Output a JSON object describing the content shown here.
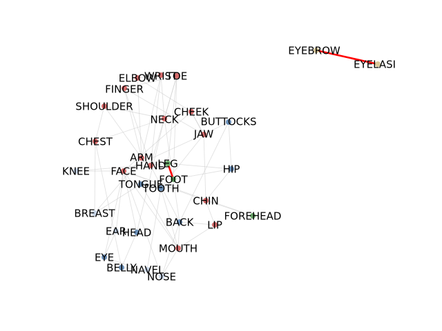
{
  "graph": {
    "colors": {
      "red_node": "#d46a6a",
      "blue_node": "#6a8fb8",
      "green_node": "#6aa86a",
      "tan_node": "#d8c89a",
      "pale_node": "#c9d6e8",
      "faint_edge": "#c8c8c8",
      "strong_edge": "#ff0000"
    },
    "nodes": [
      {
        "id": "EYEBROW",
        "label": "EYEBROW",
        "color": "tan_node"
      },
      {
        "id": "EYELASH",
        "label": "EYELASI",
        "color": "tan_node"
      },
      {
        "id": "WRIST",
        "label": "WRIST",
        "color": "red_node"
      },
      {
        "id": "TOE",
        "label": "TOE",
        "color": "red_node"
      },
      {
        "id": "ELBOW",
        "label": "ELBOW",
        "color": "red_node"
      },
      {
        "id": "FINGER",
        "label": "FINGER",
        "color": "red_node"
      },
      {
        "id": "SHOULDER",
        "label": "SHOULDER",
        "color": "red_node"
      },
      {
        "id": "CHEEK",
        "label": "CHEEK",
        "color": "red_node"
      },
      {
        "id": "NECK",
        "label": "NECK",
        "color": "red_node"
      },
      {
        "id": "BUTTOCKS",
        "label": "BUTTOCKS",
        "color": "blue_node"
      },
      {
        "id": "JAW",
        "label": "JAW",
        "color": "red_node"
      },
      {
        "id": "CHEST",
        "label": "CHEST",
        "color": "red_node"
      },
      {
        "id": "ARM",
        "label": "ARM",
        "color": "red_node"
      },
      {
        "id": "HAND",
        "label": "HAND",
        "color": "red_node"
      },
      {
        "id": "LEG",
        "label": "LEG",
        "color": "green_node"
      },
      {
        "id": "KNEE",
        "label": "KNEE",
        "color": "pale_node"
      },
      {
        "id": "FACE",
        "label": "FACE",
        "color": "red_node"
      },
      {
        "id": "HIP",
        "label": "HIP",
        "color": "blue_node"
      },
      {
        "id": "FOOT",
        "label": "FOOT",
        "color": "green_node"
      },
      {
        "id": "TONGUE",
        "label": "TONGUE",
        "color": "blue_node"
      },
      {
        "id": "TOOTH",
        "label": "TOOTH",
        "color": "blue_node"
      },
      {
        "id": "CHIN",
        "label": "CHIN",
        "color": "red_node"
      },
      {
        "id": "BREAST",
        "label": "BREAST",
        "color": "pale_node"
      },
      {
        "id": "FOREHEAD",
        "label": "FOREHEAD",
        "color": "green_node"
      },
      {
        "id": "BACK",
        "label": "BACK",
        "color": "blue_node"
      },
      {
        "id": "LIP",
        "label": "LIP",
        "color": "red_node"
      },
      {
        "id": "EAR",
        "label": "EAR",
        "color": "pale_node"
      },
      {
        "id": "HEAD",
        "label": "HEAD",
        "color": "blue_node"
      },
      {
        "id": "MOUTH",
        "label": "MOUTH",
        "color": "red_node"
      },
      {
        "id": "EYE",
        "label": "EYE",
        "color": "blue_node"
      },
      {
        "id": "BELLY",
        "label": "BELLY",
        "color": "blue_node"
      },
      {
        "id": "NAVEL",
        "label": "NAVEL",
        "color": "pale_node"
      },
      {
        "id": "NOSE",
        "label": "NOSE",
        "color": "pale_node"
      }
    ],
    "strong_edges": [
      [
        "EYEBROW",
        "EYELASH"
      ],
      [
        "LEG",
        "FOOT"
      ]
    ],
    "faint_edges": [
      [
        "ARM",
        "HAND"
      ],
      [
        "ARM",
        "ELBOW"
      ],
      [
        "ARM",
        "WRIST"
      ],
      [
        "ARM",
        "FINGER"
      ],
      [
        "ARM",
        "SHOULDER"
      ],
      [
        "HAND",
        "FINGER"
      ],
      [
        "HAND",
        "WRIST"
      ],
      [
        "HAND",
        "TOE"
      ],
      [
        "ELBOW",
        "WRIST"
      ],
      [
        "FINGER",
        "TOE"
      ],
      [
        "LEG",
        "KNEE"
      ],
      [
        "LEG",
        "TOE"
      ],
      [
        "LEG",
        "HIP"
      ],
      [
        "FOOT",
        "TOE"
      ],
      [
        "FOOT",
        "HIP"
      ],
      [
        "FACE",
        "CHEEK"
      ],
      [
        "FACE",
        "JAW"
      ],
      [
        "FACE",
        "CHIN"
      ],
      [
        "FACE",
        "MOUTH"
      ],
      [
        "FACE",
        "NOSE"
      ],
      [
        "FACE",
        "EYE"
      ],
      [
        "FACE",
        "FOREHEAD"
      ],
      [
        "FACE",
        "HEAD"
      ],
      [
        "FACE",
        "EAR"
      ],
      [
        "NECK",
        "SHOULDER"
      ],
      [
        "NECK",
        "HEAD"
      ],
      [
        "NECK",
        "CHEST"
      ],
      [
        "NECK",
        "BACK"
      ],
      [
        "CHEST",
        "BREAST"
      ],
      [
        "CHEST",
        "BELLY"
      ],
      [
        "BELLY",
        "NAVEL"
      ],
      [
        "BUTTOCKS",
        "HIP"
      ],
      [
        "BUTTOCKS",
        "BACK"
      ],
      [
        "JAW",
        "CHIN"
      ],
      [
        "JAW",
        "TOOTH"
      ],
      [
        "JAW",
        "CHEEK"
      ],
      [
        "MOUTH",
        "LIP"
      ],
      [
        "MOUTH",
        "TONGUE"
      ],
      [
        "MOUTH",
        "TOOTH"
      ],
      [
        "TONGUE",
        "TOOTH"
      ],
      [
        "LIP",
        "CHIN"
      ],
      [
        "EYE",
        "NOSE"
      ],
      [
        "EAR",
        "HEAD"
      ],
      [
        "NOSE",
        "MOUTH"
      ],
      [
        "TOE",
        "NECK"
      ],
      [
        "WRIST",
        "NECK"
      ],
      [
        "ELBOW",
        "CHEEK"
      ],
      [
        "FINGER",
        "JAW"
      ],
      [
        "HAND",
        "BACK"
      ],
      [
        "ARM",
        "BREAST"
      ],
      [
        "HEAD",
        "BELLY"
      ],
      [
        "KNEE",
        "FACE"
      ],
      [
        "HIP",
        "CHIN"
      ],
      [
        "BACK",
        "MOUTH"
      ],
      [
        "TOOTH",
        "NAVEL"
      ],
      [
        "CHIN",
        "FOREHEAD"
      ],
      [
        "EYE",
        "BELLY"
      ],
      [
        "EAR",
        "EYE"
      ],
      [
        "SHOULDER",
        "CHEST"
      ],
      [
        "CHEEK",
        "JAW"
      ],
      [
        "BUTTOCKS",
        "JAW"
      ],
      [
        "TONGUE",
        "BREAST"
      ],
      [
        "NOSE",
        "BACK"
      ],
      [
        "LIP",
        "BACK"
      ]
    ]
  }
}
